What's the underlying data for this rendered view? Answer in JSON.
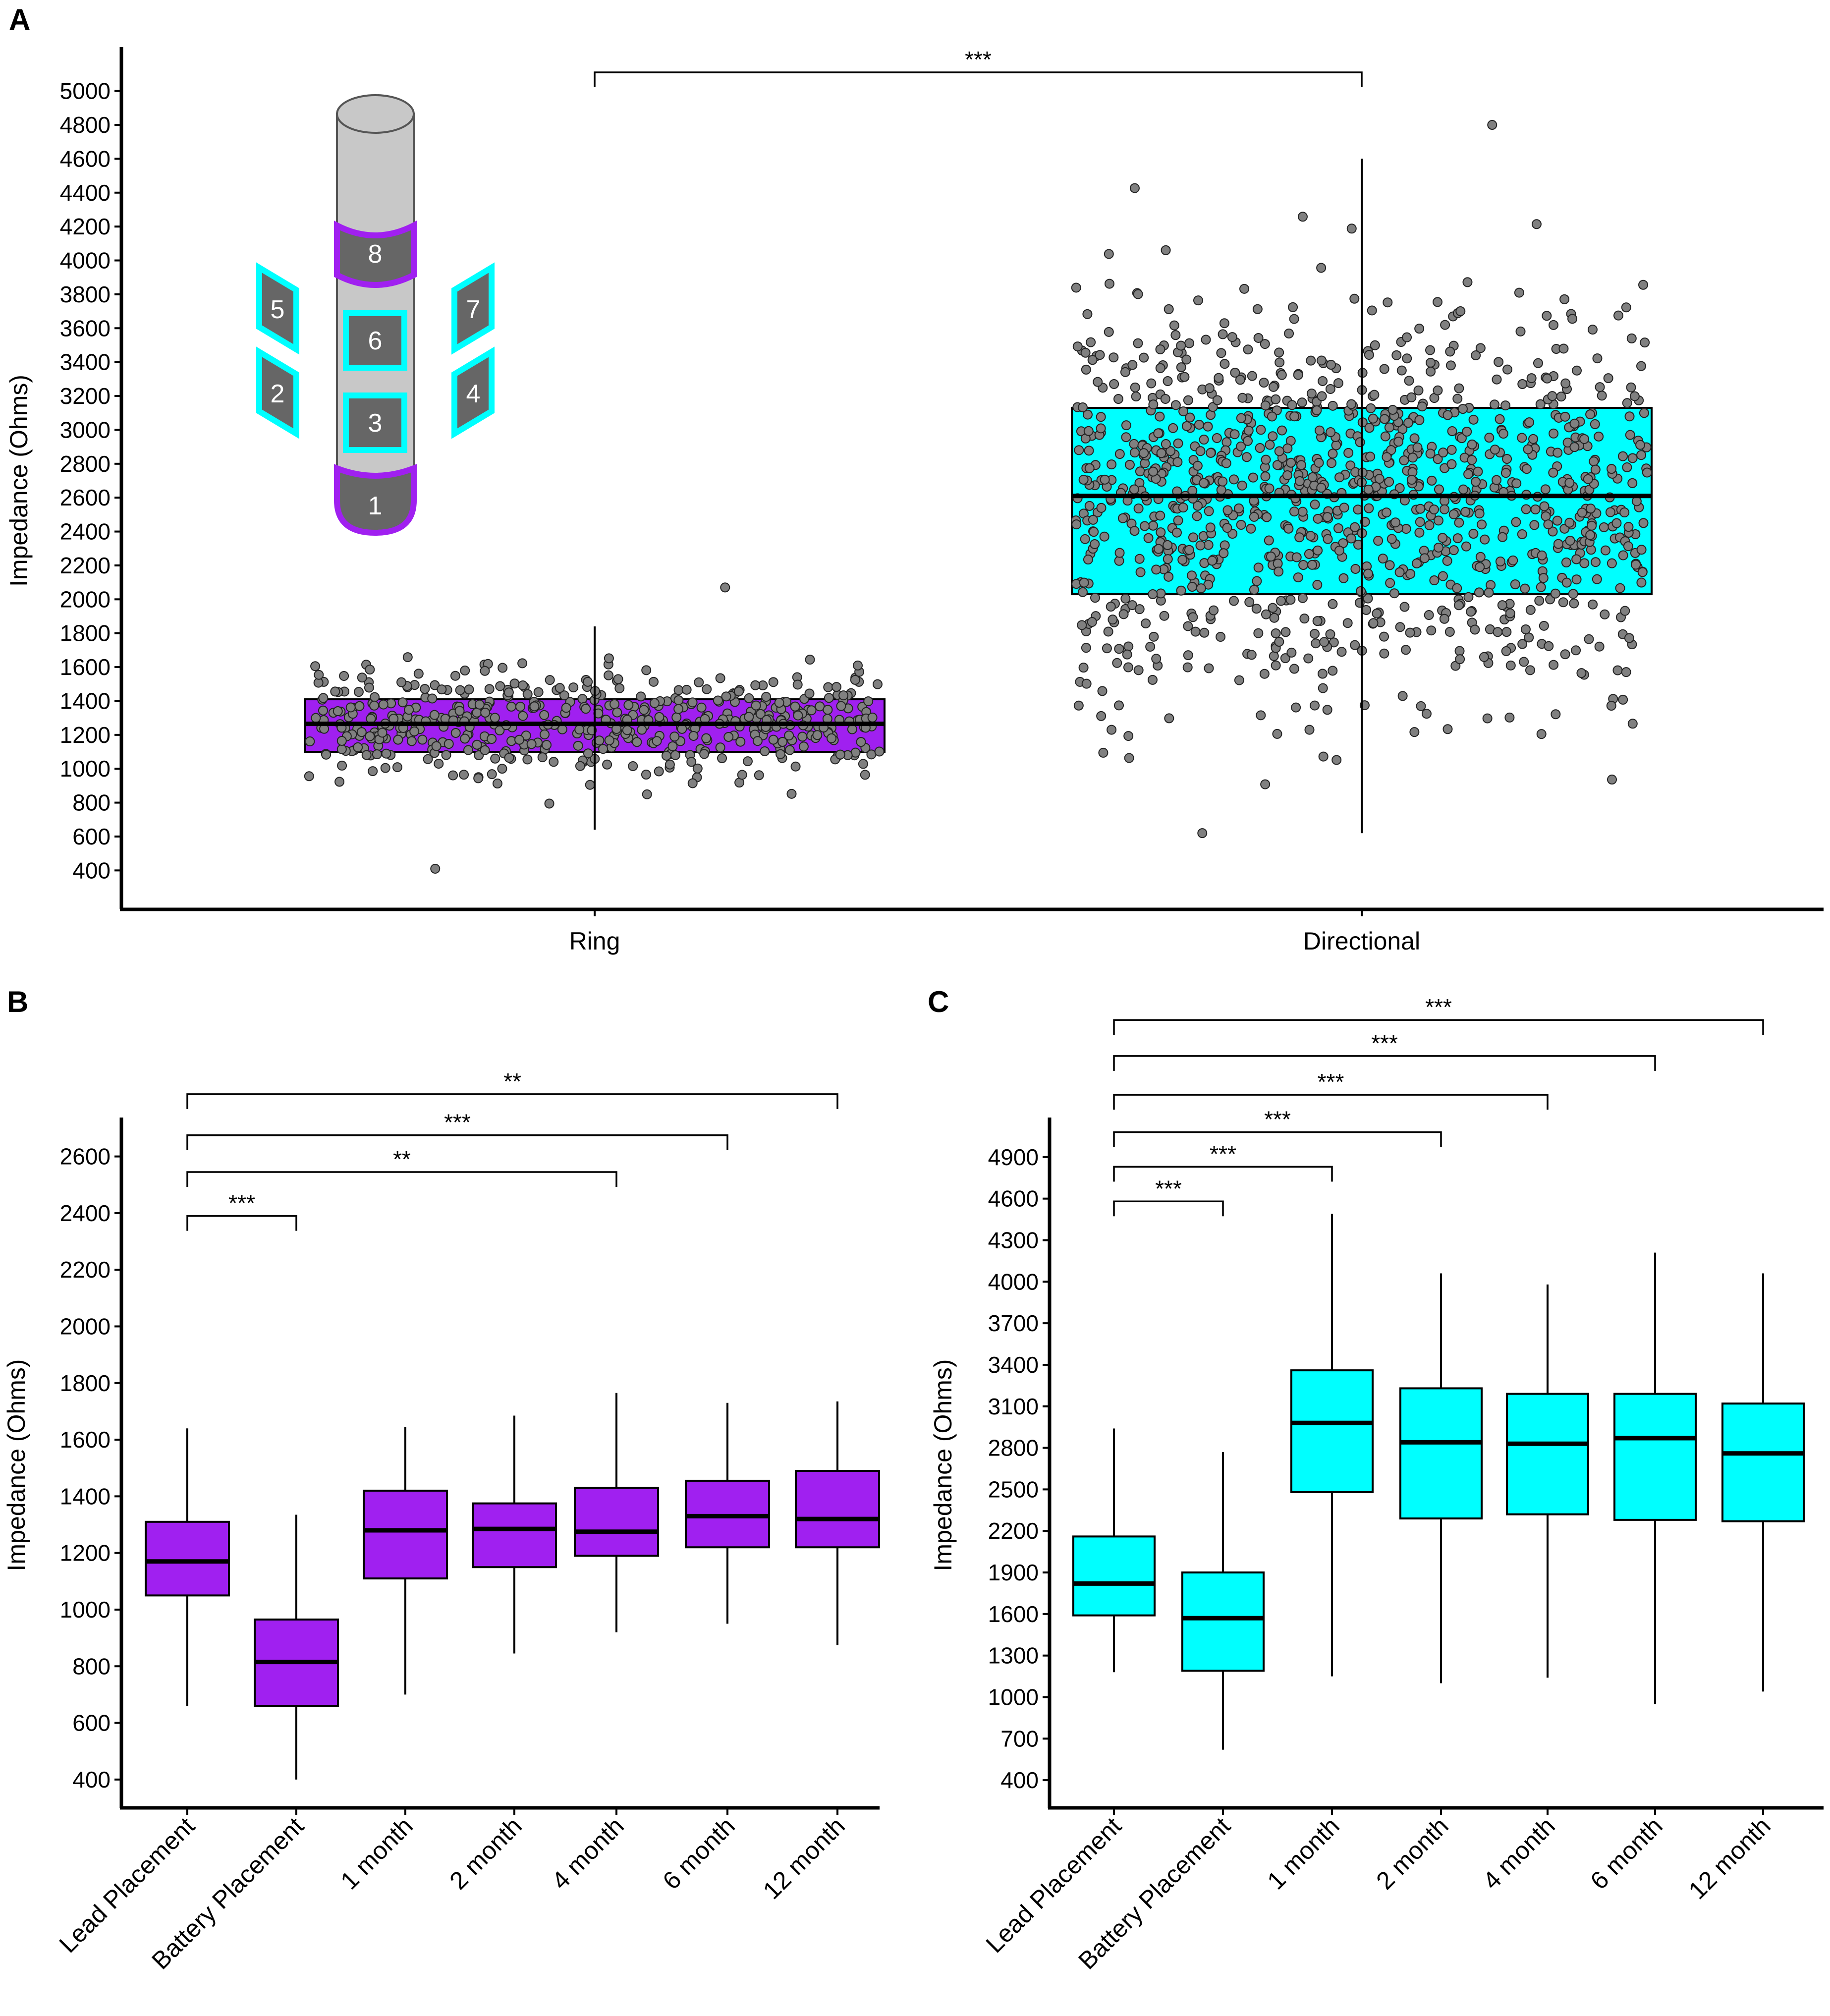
{
  "colors": {
    "ring": "#a020f0",
    "directional": "#00ffff",
    "point": "#808080",
    "axis": "#000000",
    "lead_body": "#c8c8c8",
    "contact": "#666666"
  },
  "lead_illustration": {
    "contacts": [
      "8",
      "6",
      "3",
      "1",
      "5",
      "2",
      "7",
      "4"
    ]
  },
  "chart_data": [
    {
      "panel": "A",
      "type": "boxplot",
      "title": "",
      "xlabel": "",
      "ylabel": "Impedance (Ohms)",
      "ylim": [
        170,
        5230
      ],
      "yticks": [
        400,
        600,
        800,
        1000,
        1200,
        1400,
        1600,
        1800,
        2000,
        2200,
        2400,
        2600,
        2800,
        3000,
        3200,
        3400,
        3600,
        3800,
        4000,
        4200,
        4400,
        4600,
        4800,
        5000
      ],
      "categories": [
        "Ring",
        "Directional"
      ],
      "boxes": [
        {
          "name": "Ring",
          "whisker_low": 640,
          "q1": 1100,
          "median": 1265,
          "q3": 1410,
          "whisker_high": 1840,
          "points_min": 410,
          "points_max": 2070,
          "n_points": 520,
          "color_key": "ring"
        },
        {
          "name": "Directional",
          "whisker_low": 620,
          "q1": 2030,
          "median": 2610,
          "q3": 3130,
          "whisker_high": 4600,
          "points_min": 620,
          "points_max": 4800,
          "n_points": 1150,
          "color_key": "directional"
        }
      ],
      "significance": [
        {
          "from": 0,
          "to": 1,
          "label": "***",
          "level": 5110
        }
      ]
    },
    {
      "panel": "B",
      "type": "boxplot",
      "title": "",
      "xlabel": "",
      "ylabel": "Impedance (Ohms)",
      "ylim": [
        300,
        2720
      ],
      "yticks": [
        400,
        600,
        800,
        1000,
        1200,
        1400,
        1600,
        1800,
        2000,
        2200,
        2400,
        2600
      ],
      "categories": [
        "Lead Placement",
        "Battery Placement",
        "1 month",
        "2 month",
        "4 month",
        "6 month",
        "12 month"
      ],
      "boxes": [
        {
          "name": "Lead Placement",
          "whisker_low": 660,
          "q1": 1050,
          "median": 1170,
          "q3": 1310,
          "whisker_high": 1640
        },
        {
          "name": "Battery Placement",
          "whisker_low": 400,
          "q1": 660,
          "median": 815,
          "q3": 965,
          "whisker_high": 1335
        },
        {
          "name": "1 month",
          "whisker_low": 700,
          "q1": 1110,
          "median": 1280,
          "q3": 1420,
          "whisker_high": 1645
        },
        {
          "name": "2 month",
          "whisker_low": 845,
          "q1": 1150,
          "median": 1285,
          "q3": 1375,
          "whisker_high": 1685
        },
        {
          "name": "4 month",
          "whisker_low": 920,
          "q1": 1190,
          "median": 1275,
          "q3": 1430,
          "whisker_high": 1765
        },
        {
          "name": "6 month",
          "whisker_low": 950,
          "q1": 1220,
          "median": 1330,
          "q3": 1455,
          "whisker_high": 1730
        },
        {
          "name": "12 month",
          "whisker_low": 875,
          "q1": 1220,
          "median": 1320,
          "q3": 1490,
          "whisker_high": 1735
        }
      ],
      "box_color_key": "ring",
      "significance": [
        {
          "from": 0,
          "to": 1,
          "label": "***",
          "level": 2390
        },
        {
          "from": 0,
          "to": 4,
          "label": "**",
          "level": 2545
        },
        {
          "from": 0,
          "to": 5,
          "label": "***",
          "level": 2675
        },
        {
          "from": 0,
          "to": 6,
          "label": "**",
          "level": 2820
        }
      ]
    },
    {
      "panel": "C",
      "type": "boxplot",
      "title": "",
      "xlabel": "",
      "ylabel": "Impedance (Ohms)",
      "ylim": [
        200,
        5150
      ],
      "yticks": [
        400,
        700,
        1000,
        1300,
        1600,
        1900,
        2200,
        2500,
        2800,
        3100,
        3400,
        3700,
        4000,
        4300,
        4600,
        4900
      ],
      "categories": [
        "Lead Placement",
        "Battery Placement",
        "1 month",
        "2 month",
        "4 month",
        "6 month",
        "12 month"
      ],
      "boxes": [
        {
          "name": "Lead Placement",
          "whisker_low": 1180,
          "q1": 1590,
          "median": 1820,
          "q3": 2160,
          "whisker_high": 2940
        },
        {
          "name": "Battery Placement",
          "whisker_low": 620,
          "q1": 1190,
          "median": 1570,
          "q3": 1900,
          "whisker_high": 2770
        },
        {
          "name": "1 month",
          "whisker_low": 1150,
          "q1": 2480,
          "median": 2980,
          "q3": 3360,
          "whisker_high": 4490
        },
        {
          "name": "2 month",
          "whisker_low": 1100,
          "q1": 2290,
          "median": 2840,
          "q3": 3230,
          "whisker_high": 4060
        },
        {
          "name": "4 month",
          "whisker_low": 1140,
          "q1": 2320,
          "median": 2830,
          "q3": 3190,
          "whisker_high": 3980
        },
        {
          "name": "6 month",
          "whisker_low": 950,
          "q1": 2280,
          "median": 2870,
          "q3": 3190,
          "whisker_high": 4210
        },
        {
          "name": "12 month",
          "whisker_low": 1040,
          "q1": 2270,
          "median": 2760,
          "q3": 3120,
          "whisker_high": 4060
        }
      ],
      "box_color_key": "directional",
      "significance": [
        {
          "from": 0,
          "to": 1,
          "label": "***",
          "level": 4580
        },
        {
          "from": 0,
          "to": 2,
          "label": "***",
          "level": 4830
        },
        {
          "from": 0,
          "to": 3,
          "label": "***",
          "level": 5080
        },
        {
          "from": 0,
          "to": 4,
          "label": "***",
          "level": 5350
        },
        {
          "from": 0,
          "to": 5,
          "label": "***",
          "level": 5630
        },
        {
          "from": 0,
          "to": 6,
          "label": "***",
          "level": 5890
        }
      ]
    }
  ]
}
